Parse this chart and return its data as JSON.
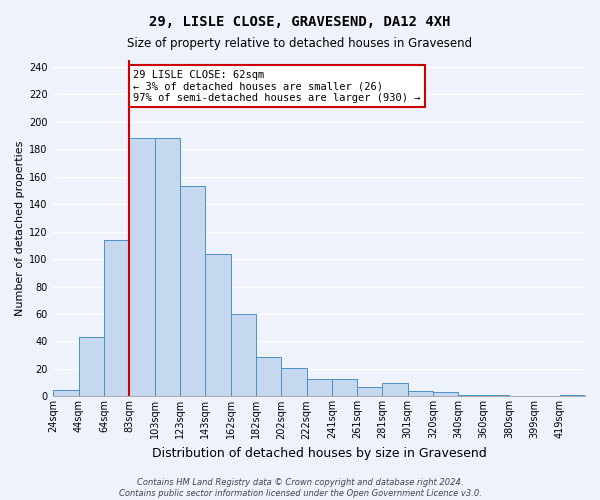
{
  "title": "29, LISLE CLOSE, GRAVESEND, DA12 4XH",
  "subtitle": "Size of property relative to detached houses in Gravesend",
  "xlabel": "Distribution of detached houses by size in Gravesend",
  "ylabel": "Number of detached properties",
  "bin_labels": [
    "24sqm",
    "44sqm",
    "64sqm",
    "83sqm",
    "103sqm",
    "123sqm",
    "143sqm",
    "162sqm",
    "182sqm",
    "202sqm",
    "222sqm",
    "241sqm",
    "261sqm",
    "281sqm",
    "301sqm",
    "320sqm",
    "340sqm",
    "360sqm",
    "380sqm",
    "399sqm",
    "419sqm"
  ],
  "bar_heights": [
    5,
    43,
    114,
    188,
    188,
    153,
    104,
    60,
    29,
    21,
    13,
    13,
    7,
    10,
    4,
    3,
    1,
    1,
    0,
    0,
    1
  ],
  "bar_color": "#c5d8f0",
  "bar_edge_color": "#4a90c8",
  "highlight_color": "#cc0000",
  "highlight_bar_idx": 2,
  "annotation_text": "29 LISLE CLOSE: 62sqm\n← 3% of detached houses are smaller (26)\n97% of semi-detached houses are larger (930) →",
  "annotation_box_facecolor": "#ffffff",
  "annotation_box_edgecolor": "#cc0000",
  "ylim": [
    0,
    245
  ],
  "yticks": [
    0,
    20,
    40,
    60,
    80,
    100,
    120,
    140,
    160,
    180,
    200,
    220,
    240
  ],
  "footer_line1": "Contains HM Land Registry data © Crown copyright and database right 2024.",
  "footer_line2": "Contains public sector information licensed under the Open Government Licence v3.0.",
  "bg_color": "#eef2fa",
  "grid_color": "#ffffff",
  "title_fontsize": 10,
  "subtitle_fontsize": 8.5,
  "ylabel_fontsize": 8,
  "xlabel_fontsize": 9,
  "tick_fontsize": 7,
  "ann_fontsize": 7.5,
  "footer_fontsize": 6
}
